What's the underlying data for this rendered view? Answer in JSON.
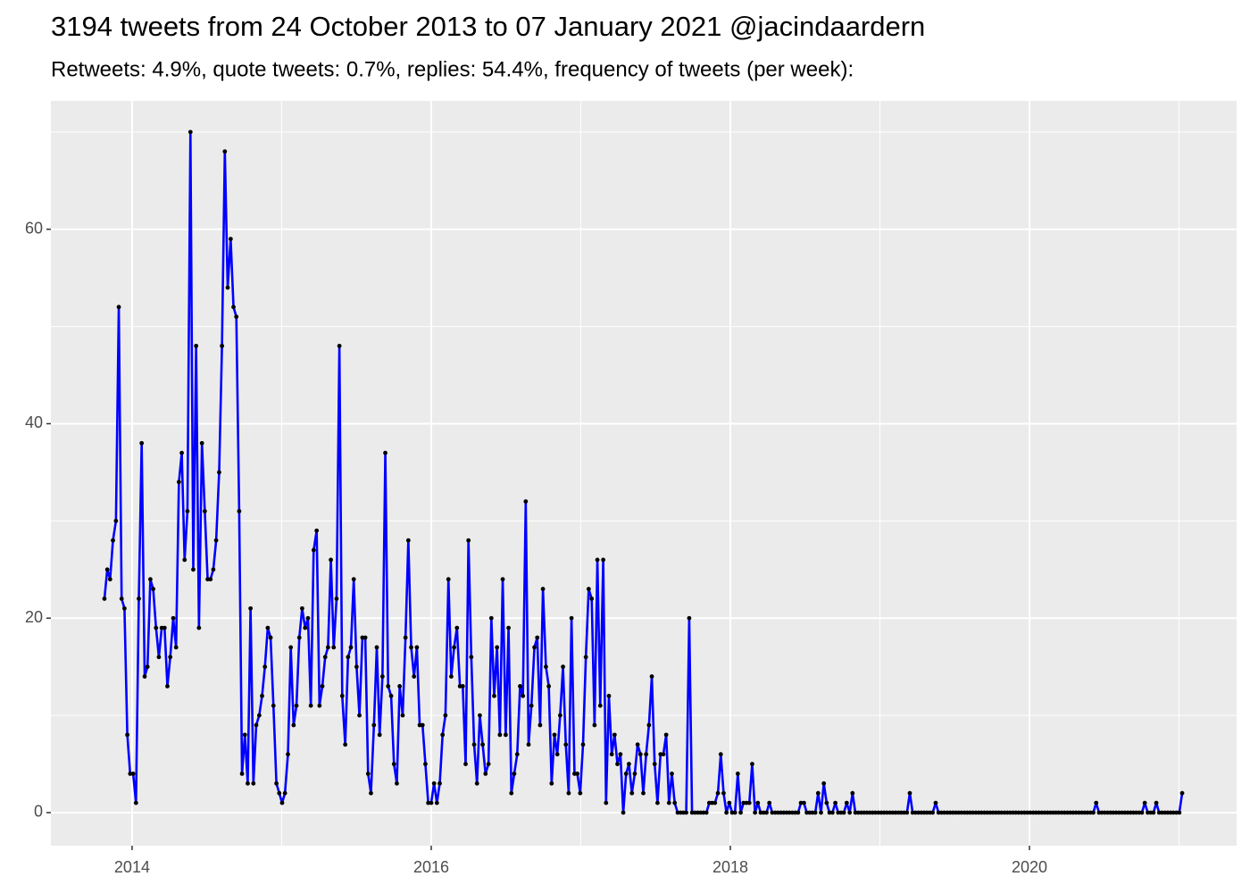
{
  "chart_data": {
    "type": "line",
    "title": "3194 tweets from 24 October 2013 to 07 January 2021 @jacindaardern",
    "subtitle": "Retweets: 4.9%, quote tweets: 0.7%, replies: 54.4%, frequency of tweets (per week):",
    "color": "#0000ff",
    "point_color": "#000000",
    "grid": true,
    "xlim": [
      2013.457,
      2021.385
    ],
    "xticks": [
      2014,
      2016,
      2018,
      2020
    ],
    "ylim": [
      -3.4,
      73.2
    ],
    "yticks": [
      0,
      20,
      40,
      60
    ],
    "x": [
      2013.815,
      2013.834,
      2013.853,
      2013.872,
      2013.892,
      2013.911,
      2013.93,
      2013.949,
      2013.968,
      2013.987,
      2014.007,
      2014.026,
      2014.045,
      2014.064,
      2014.084,
      2014.103,
      2014.122,
      2014.141,
      2014.16,
      2014.179,
      2014.198,
      2014.217,
      2014.236,
      2014.255,
      2014.275,
      2014.294,
      2014.313,
      2014.332,
      2014.351,
      2014.37,
      2014.39,
      2014.409,
      2014.428,
      2014.447,
      2014.467,
      2014.486,
      2014.505,
      2014.524,
      2014.543,
      2014.562,
      2014.582,
      2014.601,
      2014.62,
      2014.639,
      2014.659,
      2014.678,
      2014.697,
      2014.716,
      2014.735,
      2014.754,
      2014.773,
      2014.792,
      2014.811,
      2014.83,
      2014.85,
      2014.869,
      2014.888,
      2014.907,
      2014.926,
      2014.945,
      2014.965,
      2014.984,
      2015.003,
      2015.022,
      2015.042,
      2015.061,
      2015.08,
      2015.099,
      2015.118,
      2015.137,
      2015.157,
      2015.176,
      2015.195,
      2015.214,
      2015.234,
      2015.253,
      2015.272,
      2015.291,
      2015.31,
      2015.329,
      2015.348,
      2015.367,
      2015.386,
      2015.405,
      2015.425,
      2015.444,
      2015.463,
      2015.482,
      2015.501,
      2015.52,
      2015.54,
      2015.559,
      2015.578,
      2015.597,
      2015.617,
      2015.636,
      2015.655,
      2015.674,
      2015.693,
      2015.712,
      2015.732,
      2015.751,
      2015.77,
      2015.789,
      2015.809,
      2015.828,
      2015.847,
      2015.866,
      2015.885,
      2015.904,
      2015.923,
      2015.942,
      2015.961,
      2015.98,
      2016.0,
      2016.019,
      2016.038,
      2016.057,
      2016.076,
      2016.095,
      2016.115,
      2016.134,
      2016.153,
      2016.172,
      2016.192,
      2016.211,
      2016.23,
      2016.249,
      2016.268,
      2016.287,
      2016.306,
      2016.325,
      2016.344,
      2016.363,
      2016.383,
      2016.402,
      2016.421,
      2016.44,
      2016.459,
      2016.478,
      2016.498,
      2016.517,
      2016.536,
      2016.555,
      2016.575,
      2016.594,
      2016.613,
      2016.632,
      2016.651,
      2016.67,
      2016.69,
      2016.709,
      2016.728,
      2016.747,
      2016.767,
      2016.786,
      2016.805,
      2016.824,
      2016.843,
      2016.862,
      2016.881,
      2016.9,
      2016.919,
      2016.938,
      2016.958,
      2016.977,
      2016.996,
      2017.015,
      2017.034,
      2017.053,
      2017.073,
      2017.092,
      2017.111,
      2017.13,
      2017.15,
      2017.169,
      2017.188,
      2017.207,
      2017.226,
      2017.245,
      2017.265,
      2017.284,
      2017.303,
      2017.322,
      2017.342,
      2017.361,
      2017.38,
      2017.399,
      2017.418,
      2017.437,
      2017.456,
      2017.475,
      2017.494,
      2017.513,
      2017.533,
      2017.552,
      2017.571,
      2017.59,
      2017.609,
      2017.628,
      2017.648,
      2017.667,
      2017.686,
      2017.705,
      2017.725,
      2017.744,
      2017.763,
      2017.782,
      2017.801,
      2017.82,
      2017.84,
      2017.859,
      2017.878,
      2017.897,
      2017.917,
      2017.936,
      2017.955,
      2017.974,
      2017.993,
      2018.012,
      2018.031,
      2018.05,
      2018.069,
      2018.088,
      2018.108,
      2018.127,
      2018.146,
      2018.165,
      2018.184,
      2018.203,
      2018.223,
      2018.242,
      2018.261,
      2018.28,
      2018.3,
      2018.319,
      2018.338,
      2018.357,
      2018.376,
      2018.395,
      2018.415,
      2018.434,
      2018.453,
      2018.472,
      2018.492,
      2018.511,
      2018.53,
      2018.549,
      2018.568,
      2018.587,
      2018.606,
      2018.625,
      2018.644,
      2018.663,
      2018.683,
      2018.702,
      2018.721,
      2018.74,
      2018.759,
      2018.778,
      2018.798,
      2018.817,
      2018.836,
      2018.855,
      2018.875,
      2018.894,
      2018.913,
      2018.932,
      2018.951,
      2018.97,
      2018.99,
      2019.009,
      2019.028,
      2019.047,
      2019.067,
      2019.086,
      2019.105,
      2019.124,
      2019.143,
      2019.162,
      2019.181,
      2019.2,
      2019.219,
      2019.238,
      2019.258,
      2019.277,
      2019.296,
      2019.315,
      2019.334,
      2019.353,
      2019.373,
      2019.392,
      2019.411,
      2019.43,
      2019.45,
      2019.469,
      2019.488,
      2019.507,
      2019.526,
      2019.545,
      2019.565,
      2019.584,
      2019.603,
      2019.622,
      2019.642,
      2019.661,
      2019.68,
      2019.699,
      2019.718,
      2019.737,
      2019.756,
      2019.775,
      2019.794,
      2019.813,
      2019.833,
      2019.852,
      2019.871,
      2019.89,
      2019.909,
      2019.928,
      2019.948,
      2019.967,
      2019.986,
      2020.005,
      2020.025,
      2020.044,
      2020.063,
      2020.082,
      2020.101,
      2020.12,
      2020.139,
      2020.158,
      2020.177,
      2020.196,
      2020.216,
      2020.235,
      2020.254,
      2020.273,
      2020.292,
      2020.311,
      2020.331,
      2020.35,
      2020.369,
      2020.388,
      2020.408,
      2020.427,
      2020.446,
      2020.465,
      2020.484,
      2020.503,
      2020.523,
      2020.542,
      2020.561,
      2020.58,
      2020.6,
      2020.619,
      2020.638,
      2020.657,
      2020.676,
      2020.695,
      2020.714,
      2020.733,
      2020.752,
      2020.771,
      2020.791,
      2020.81,
      2020.829,
      2020.848,
      2020.867,
      2020.886,
      2020.906,
      2020.925,
      2020.944,
      2020.963,
      2020.983,
      2021.002,
      2021.021
    ],
    "values": [
      22,
      25,
      24,
      28,
      30,
      52,
      22,
      21,
      8,
      4,
      4,
      1,
      22,
      38,
      14,
      15,
      24,
      23,
      19,
      16,
      19,
      19,
      13,
      16,
      20,
      17,
      34,
      37,
      26,
      31,
      70,
      25,
      48,
      19,
      38,
      31,
      24,
      24,
      25,
      28,
      35,
      48,
      68,
      54,
      59,
      52,
      51,
      31,
      4,
      8,
      3,
      21,
      3,
      9,
      10,
      12,
      15,
      19,
      18,
      11,
      3,
      2,
      1,
      2,
      6,
      17,
      9,
      11,
      18,
      21,
      19,
      20,
      11,
      27,
      29,
      11,
      13,
      16,
      17,
      26,
      17,
      22,
      48,
      12,
      7,
      16,
      17,
      24,
      15,
      10,
      18,
      18,
      4,
      2,
      9,
      17,
      8,
      14,
      37,
      13,
      12,
      5,
      3,
      13,
      10,
      18,
      28,
      17,
      14,
      17,
      9,
      9,
      5,
      1,
      1,
      3,
      1,
      3,
      8,
      10,
      24,
      14,
      17,
      19,
      13,
      13,
      5,
      28,
      16,
      7,
      3,
      10,
      7,
      4,
      5,
      20,
      12,
      17,
      8,
      24,
      8,
      19,
      2,
      4,
      6,
      13,
      12,
      32,
      7,
      11,
      17,
      18,
      9,
      23,
      15,
      13,
      3,
      8,
      6,
      10,
      15,
      7,
      2,
      20,
      4,
      4,
      2,
      7,
      16,
      23,
      22,
      9,
      26,
      11,
      26,
      1,
      12,
      6,
      8,
      5,
      6,
      0,
      4,
      5,
      2,
      4,
      7,
      6,
      2,
      6,
      9,
      14,
      5,
      1,
      6,
      6,
      8,
      1,
      4,
      1,
      0,
      0,
      0,
      0,
      20,
      0,
      0,
      0,
      0,
      0,
      0,
      1,
      1,
      1,
      2,
      6,
      2,
      0,
      1,
      0,
      0,
      4,
      0,
      1,
      1,
      1,
      5,
      0,
      1,
      0,
      0,
      0,
      1,
      0,
      0,
      0,
      0,
      0,
      0,
      0,
      0,
      0,
      0,
      1,
      1,
      0,
      0,
      0,
      0,
      2,
      0,
      3,
      1,
      0,
      0,
      1,
      0,
      0,
      0,
      1,
      0,
      2,
      0,
      0,
      0,
      0,
      0,
      0,
      0,
      0,
      0,
      0,
      0,
      0,
      0,
      0,
      0,
      0,
      0,
      0,
      0,
      2,
      0,
      0,
      0,
      0,
      0,
      0,
      0,
      0,
      1,
      0,
      0,
      0,
      0,
      0,
      0,
      0,
      0,
      0,
      0,
      0,
      0,
      0,
      0,
      0,
      0,
      0,
      0,
      0,
      0,
      0,
      0,
      0,
      0,
      0,
      0,
      0,
      0,
      0,
      0,
      0,
      0,
      0,
      0,
      0,
      0,
      0,
      0,
      0,
      0,
      0,
      0,
      0,
      0,
      0,
      0,
      0,
      0,
      0,
      0,
      0,
      0,
      0,
      0,
      0,
      1,
      0,
      0,
      0,
      0,
      0,
      0,
      0,
      0,
      0,
      0,
      0,
      0,
      0,
      0,
      0,
      0,
      1,
      0,
      0,
      0,
      1,
      0,
      0,
      0,
      0,
      0,
      0,
      0,
      0,
      2
    ]
  }
}
